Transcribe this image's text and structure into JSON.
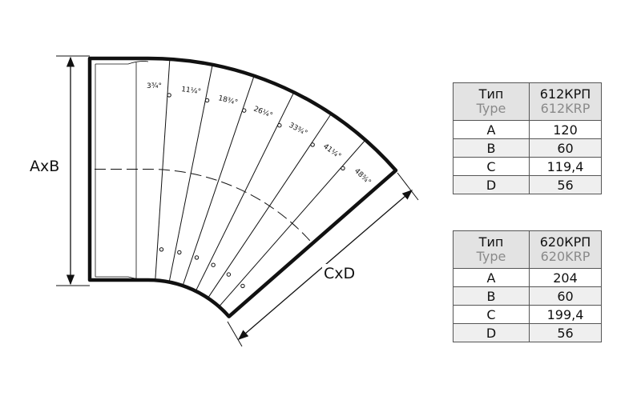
{
  "diagram": {
    "dimension_ab": "AxB",
    "dimension_cd": "CxD",
    "angles": [
      "3¾°",
      "11¼°",
      "18¾°",
      "26¼°",
      "33¾°",
      "41¼°",
      "48¾°"
    ]
  },
  "tables": [
    {
      "header_ru": "Тип",
      "header_en": "Type",
      "model_ru": "612КРП",
      "model_en": "612KRP",
      "rows": [
        {
          "k": "A",
          "v": "120"
        },
        {
          "k": "B",
          "v": "60"
        },
        {
          "k": "C",
          "v": "119,4"
        },
        {
          "k": "D",
          "v": "56"
        }
      ]
    },
    {
      "header_ru": "Тип",
      "header_en": "Type",
      "model_ru": "620КРП",
      "model_en": "620KRP",
      "rows": [
        {
          "k": "A",
          "v": "204"
        },
        {
          "k": "B",
          "v": "60"
        },
        {
          "k": "C",
          "v": "199,4"
        },
        {
          "k": "D",
          "v": "56"
        }
      ]
    }
  ]
}
